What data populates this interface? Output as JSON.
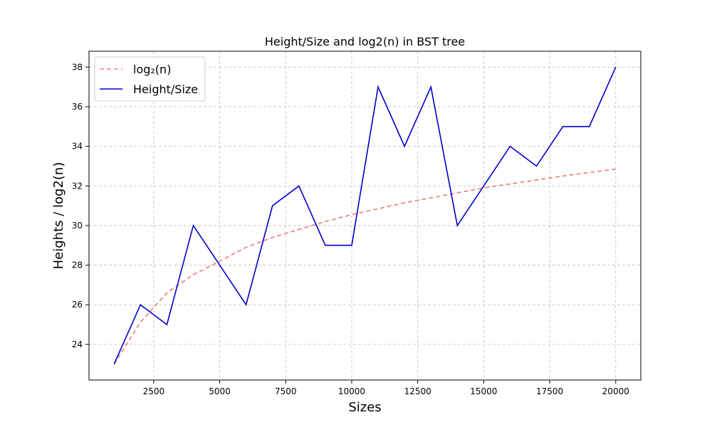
{
  "chart_data": {
    "type": "line",
    "title": "Height/Size and log2(n) in BST tree",
    "xlabel": "Sizes",
    "ylabel": "Heights / log2(n)",
    "xlim": [
      50,
      20950
    ],
    "ylim": [
      22.2,
      38.8
    ],
    "xticks": [
      2500,
      5000,
      7500,
      10000,
      12500,
      15000,
      17500,
      20000
    ],
    "yticks": [
      24,
      26,
      28,
      30,
      32,
      34,
      36,
      38
    ],
    "grid": true,
    "legend_position": "top-left",
    "x": [
      1000,
      2000,
      3000,
      4000,
      5000,
      6000,
      7000,
      8000,
      9000,
      10000,
      11000,
      12000,
      13000,
      14000,
      15000,
      16000,
      17000,
      18000,
      19000,
      20000
    ],
    "series": [
      {
        "name": "log₂(n)",
        "style": "dashed",
        "color": "#f08080",
        "values": [
          23.0,
          25.12,
          26.6,
          27.52,
          28.2,
          28.9,
          29.4,
          29.8,
          30.2,
          30.55,
          30.85,
          31.15,
          31.4,
          31.65,
          31.9,
          32.1,
          32.3,
          32.5,
          32.68,
          32.85
        ]
      },
      {
        "name": "Height/Size",
        "style": "solid",
        "color": "#0000cd",
        "values": [
          23,
          26,
          25,
          30,
          28,
          26,
          31,
          32,
          29,
          29,
          37,
          34,
          37,
          30,
          32,
          34,
          33,
          35,
          35,
          38
        ]
      }
    ]
  }
}
